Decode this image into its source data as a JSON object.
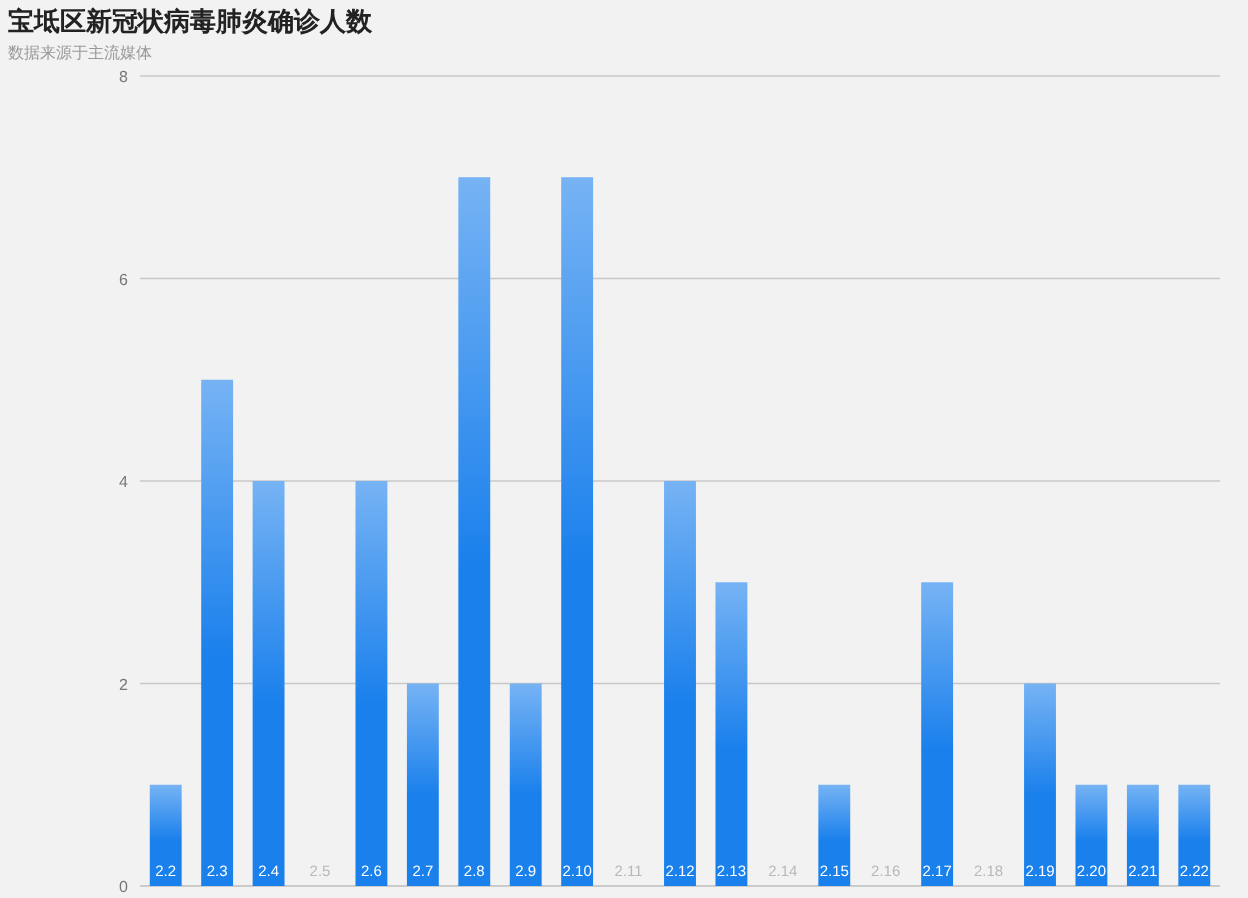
{
  "chart_data": {
    "type": "bar",
    "title": "宝坻区新冠状病毒肺炎确诊人数",
    "subtitle": "数据来源于主流媒体",
    "categories": [
      "2.2",
      "2.3",
      "2.4",
      "2.5",
      "2.6",
      "2.7",
      "2.8",
      "2.9",
      "2.10",
      "2.11",
      "2.12",
      "2.13",
      "2.14",
      "2.15",
      "2.16",
      "2.17",
      "2.18",
      "2.19",
      "2.20",
      "2.21",
      "2.22"
    ],
    "values": [
      1,
      5,
      4,
      0,
      4,
      2,
      7,
      2,
      7,
      0,
      4,
      3,
      0,
      1,
      0,
      3,
      0,
      2,
      1,
      1,
      1
    ],
    "color": "#1a80ec",
    "ylim": [
      0,
      8
    ],
    "yticks": [
      0,
      2,
      4,
      6,
      8
    ],
    "grid": "y"
  }
}
